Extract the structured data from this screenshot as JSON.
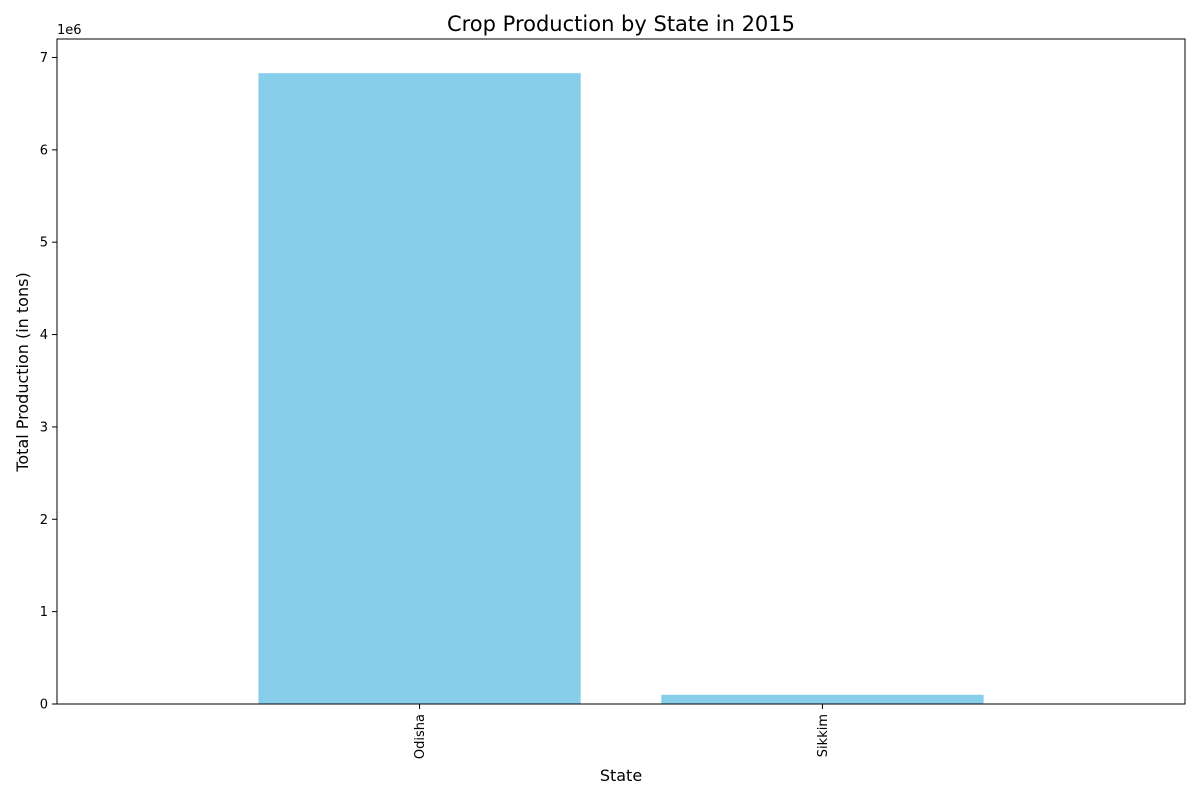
{
  "chart_data": {
    "type": "bar",
    "title": "Crop Production by State in 2015",
    "xlabel": "State",
    "ylabel": "Total Production (in tons)",
    "categories": [
      "Odisha",
      "Sikkim"
    ],
    "values": [
      6830000,
      100000
    ],
    "ylim": [
      0,
      7200000
    ],
    "y_ticks": [
      0,
      1000000,
      2000000,
      3000000,
      4000000,
      5000000,
      6000000,
      7000000
    ],
    "y_tick_labels": [
      "0",
      "1",
      "2",
      "3",
      "4",
      "5",
      "6",
      "7"
    ],
    "y_offset_label": "1e6",
    "bar_color": "#87ceeb",
    "grid": false,
    "legend": false
  }
}
